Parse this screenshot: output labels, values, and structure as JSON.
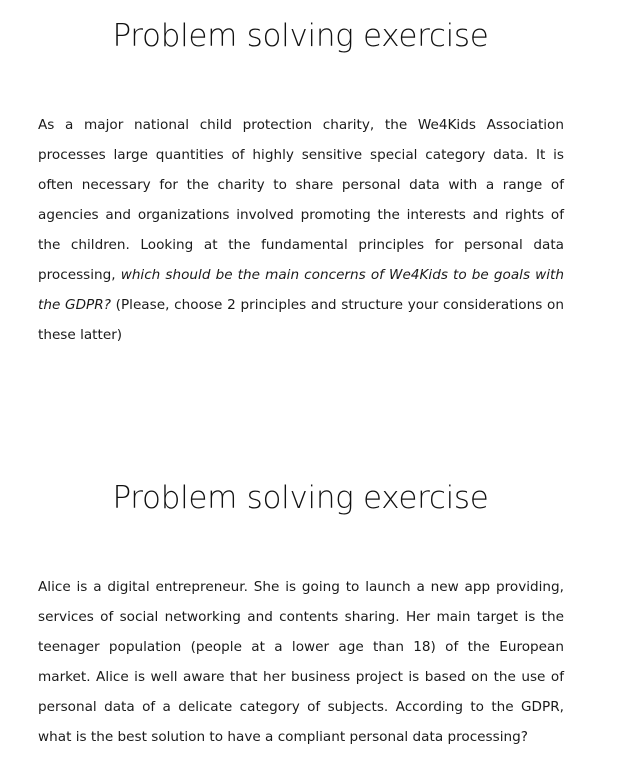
{
  "exercise_1": {
    "title": "Problem solving exercise",
    "text_part1": "As a major national child protection charity, the We4Kids Association processes large quantities of highly sensitive special category data. It is often necessary for the charity to share personal data with a range of agencies and organizations involved promoting the interests and rights of the children. Looking at the fundamental principles for personal data processing, ",
    "text_italic": "which should be the main concerns of We4Kids to be goals with the GDPR?",
    "text_part2": " (Please, choose 2 principles and structure your considerations on these latter)"
  },
  "exercise_2": {
    "title": "Problem solving exercise",
    "text": "Alice is a digital entrepreneur. She is going to launch a new app providing, services of social networking and contents sharing. Her main target is the teenager population (people at a lower age than 18) of the European market. Alice is well aware that her business project is based on the use of personal data of a delicate category of subjects. According to the GDPR, what is the best solution to have a compliant personal data processing?"
  }
}
